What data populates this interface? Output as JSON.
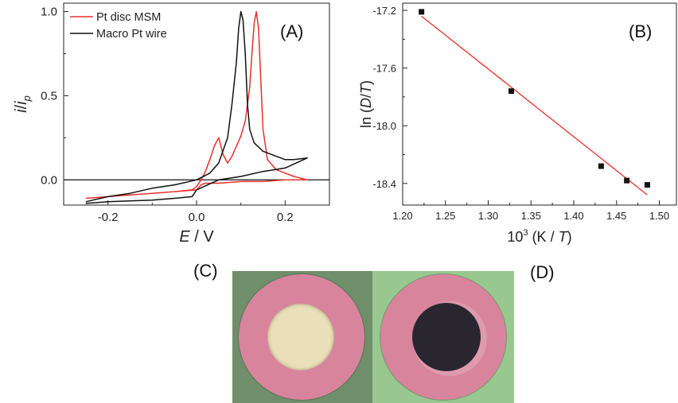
{
  "chart_data": [
    {
      "id": "A",
      "type": "line",
      "panel_label": "(A)",
      "xlabel_italic": "E",
      "xlabel_rest": " / V",
      "ylabel_i": "i",
      "ylabel_slash": "/",
      "ylabel_ip": "i",
      "ylabel_sub": "p",
      "xlim": [
        -0.3,
        0.3
      ],
      "ylim": [
        -0.15,
        1.05
      ],
      "xticks": [
        -0.2,
        0.0,
        0.2
      ],
      "xtick_labels": [
        "-0.2",
        "0.0",
        "0.2"
      ],
      "yticks": [
        0.0,
        0.5,
        1.0
      ],
      "ytick_labels": [
        "0.0",
        "0.5",
        "1.0"
      ],
      "zero_line": true,
      "legend_position": "top-left",
      "series": [
        {
          "name": "Pt disc MSM",
          "color": "#e8302a",
          "x": [
            -0.25,
            -0.2,
            -0.15,
            -0.1,
            -0.05,
            -0.01,
            0.0,
            0.01,
            0.02,
            0.03,
            0.04,
            0.05,
            0.06,
            0.07,
            0.08,
            0.09,
            0.1,
            0.11,
            0.12,
            0.125,
            0.13,
            0.135,
            0.14,
            0.145,
            0.15,
            0.16,
            0.18,
            0.2,
            0.22,
            0.25,
            0.2,
            0.15,
            0.1,
            0.05,
            0.02,
            0.01,
            0.0,
            -0.05,
            -0.1,
            -0.15,
            -0.2,
            -0.25
          ],
          "y": [
            -0.11,
            -0.1,
            -0.09,
            -0.08,
            -0.07,
            -0.06,
            -0.04,
            0.0,
            0.05,
            0.12,
            0.2,
            0.25,
            0.15,
            0.1,
            0.14,
            0.2,
            0.26,
            0.35,
            0.55,
            0.75,
            0.93,
            1.0,
            0.9,
            0.6,
            0.3,
            0.12,
            0.06,
            0.04,
            0.02,
            0.0,
            0.0,
            -0.01,
            -0.01,
            -0.02,
            -0.02,
            -0.03,
            -0.06,
            -0.07,
            -0.08,
            -0.09,
            -0.1,
            -0.11
          ]
        },
        {
          "name": "Macro Pt wire",
          "color": "#111111",
          "x": [
            -0.25,
            -0.2,
            -0.15,
            -0.1,
            -0.05,
            0.0,
            0.03,
            0.05,
            0.07,
            0.08,
            0.09,
            0.095,
            0.1,
            0.105,
            0.11,
            0.115,
            0.12,
            0.13,
            0.15,
            0.18,
            0.2,
            0.22,
            0.25,
            0.2,
            0.15,
            0.1,
            0.05,
            0.0,
            -0.01,
            -0.05,
            -0.1,
            -0.15,
            -0.2,
            -0.25
          ],
          "y": [
            -0.13,
            -0.1,
            -0.08,
            -0.05,
            -0.03,
            0.0,
            0.04,
            0.1,
            0.25,
            0.45,
            0.7,
            0.9,
            1.0,
            0.95,
            0.75,
            0.45,
            0.3,
            0.22,
            0.17,
            0.14,
            0.12,
            0.12,
            0.13,
            0.07,
            0.05,
            0.02,
            0.0,
            -0.06,
            -0.1,
            -0.11,
            -0.12,
            -0.125,
            -0.13,
            -0.14
          ]
        }
      ]
    },
    {
      "id": "B",
      "type": "scatter",
      "panel_label": "(B)",
      "xlabel_pre": "10",
      "xlabel_sup": "3",
      "xlabel_mid": " (K / ",
      "xlabel_T": "T",
      "xlabel_end": ")",
      "ylabel_pre": "ln (",
      "ylabel_D": "D",
      "ylabel_slash": "/",
      "ylabel_T": "T",
      "ylabel_end": ")",
      "xlim": [
        1.2,
        1.52
      ],
      "ylim": [
        -18.55,
        -17.15
      ],
      "xticks": [
        1.2,
        1.25,
        1.3,
        1.35,
        1.4,
        1.45,
        1.5
      ],
      "xtick_labels": [
        "1.20",
        "1.25",
        "1.30",
        "1.35",
        "1.40",
        "1.45",
        "1.50"
      ],
      "yticks": [
        -17.2,
        -17.6,
        -18.0,
        -18.4
      ],
      "ytick_labels": [
        "-17.2",
        "-17.6",
        "-18.0",
        "-18.4"
      ],
      "points": {
        "x": [
          1.222,
          1.327,
          1.432,
          1.462,
          1.486
        ],
        "y": [
          -17.21,
          -17.76,
          -18.28,
          -18.38,
          -18.41
        ],
        "color": "#111111"
      },
      "fit_line": {
        "x": [
          1.222,
          1.486
        ],
        "y": [
          -17.24,
          -18.48
        ],
        "color": "#e8302a"
      }
    }
  ],
  "photos": {
    "label_c": "(C)",
    "label_d": "(D)",
    "left_background": "#6f8f6a",
    "right_background": "#98c890",
    "ring_color": "#d8849d",
    "disc_color_c": "#e9dfb8",
    "disc_color_d": "#2a2630"
  }
}
